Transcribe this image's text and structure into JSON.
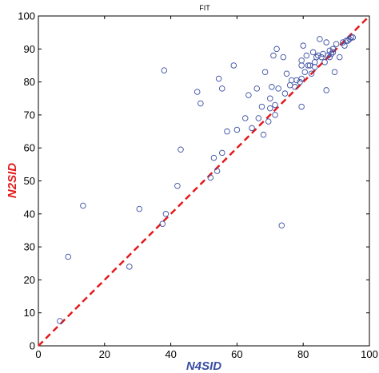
{
  "chart_data": {
    "type": "scatter",
    "title": "FIT",
    "xlabel": "N4SID",
    "ylabel": "N2SID",
    "xlim": [
      0,
      100
    ],
    "ylim": [
      0,
      100
    ],
    "xticks": [
      "0",
      "20",
      "40",
      "60",
      "80",
      "100"
    ],
    "yticks": [
      "0",
      "10",
      "20",
      "30",
      "40",
      "50",
      "60",
      "70",
      "80",
      "90",
      "100"
    ],
    "grid": false,
    "legend": "none",
    "colors": {
      "marker": "#3b4fa3",
      "reference_line": "#e31a1c",
      "xlabel": "#3b4fa3",
      "ylabel": "#e31a1c"
    },
    "reference_line": {
      "style": "dashed",
      "from": [
        0,
        0
      ],
      "to": [
        100,
        100
      ]
    },
    "series": [
      {
        "values": [
          [
            6.5,
            7.5
          ],
          [
            9,
            27
          ],
          [
            13.5,
            42.5
          ],
          [
            27.5,
            24
          ],
          [
            30.5,
            41.5
          ],
          [
            37.5,
            37
          ],
          [
            38.5,
            40
          ],
          [
            38,
            83.5
          ],
          [
            42,
            48.5
          ],
          [
            43,
            59.5
          ],
          [
            48,
            77
          ],
          [
            49,
            73.5
          ],
          [
            52,
            51
          ],
          [
            54,
            53
          ],
          [
            53,
            57
          ],
          [
            54.5,
            81
          ],
          [
            55.5,
            78
          ],
          [
            55.5,
            58.5
          ],
          [
            57,
            65
          ],
          [
            59,
            85
          ],
          [
            60,
            65.5
          ],
          [
            62.5,
            69
          ],
          [
            63.5,
            76
          ],
          [
            64.5,
            66
          ],
          [
            66,
            78
          ],
          [
            66.5,
            69
          ],
          [
            67.5,
            72.5
          ],
          [
            68,
            64
          ],
          [
            68.5,
            83
          ],
          [
            69.5,
            68
          ],
          [
            70,
            72
          ],
          [
            70,
            75
          ],
          [
            70.5,
            78.5
          ],
          [
            71,
            88
          ],
          [
            71.5,
            73
          ],
          [
            71.5,
            70
          ],
          [
            72,
            90
          ],
          [
            72.5,
            78
          ],
          [
            73.5,
            36.5
          ],
          [
            74,
            87.5
          ],
          [
            74.5,
            76.5
          ],
          [
            75,
            82.5
          ],
          [
            76,
            79
          ],
          [
            76.5,
            80.5
          ],
          [
            77.5,
            78.5
          ],
          [
            78,
            80.5
          ],
          [
            79,
            80
          ],
          [
            79.5,
            81
          ],
          [
            79.5,
            85
          ],
          [
            79.5,
            86.5
          ],
          [
            79.5,
            72.5
          ],
          [
            80,
            91
          ],
          [
            80.5,
            83
          ],
          [
            81,
            88
          ],
          [
            81.5,
            85
          ],
          [
            82,
            85
          ],
          [
            82.5,
            82.5
          ],
          [
            83,
            89
          ],
          [
            83.5,
            84.5
          ],
          [
            83.5,
            86
          ],
          [
            84,
            87.5
          ],
          [
            84.5,
            88
          ],
          [
            85,
            93
          ],
          [
            85.5,
            87.5
          ],
          [
            86,
            88.5
          ],
          [
            86.5,
            86
          ],
          [
            87,
            77.5
          ],
          [
            87,
            92
          ],
          [
            87.5,
            88
          ],
          [
            88,
            89.5
          ],
          [
            88,
            87.5
          ],
          [
            88.5,
            88.5
          ],
          [
            89,
            89
          ],
          [
            89,
            90
          ],
          [
            89.5,
            83
          ],
          [
            90,
            91.5
          ],
          [
            91,
            87.5
          ],
          [
            92,
            92
          ],
          [
            92.5,
            91
          ],
          [
            93,
            92.5
          ],
          [
            93.5,
            92.5
          ],
          [
            94,
            93
          ],
          [
            94.5,
            93.5
          ],
          [
            95,
            93.5
          ]
        ]
      }
    ]
  }
}
